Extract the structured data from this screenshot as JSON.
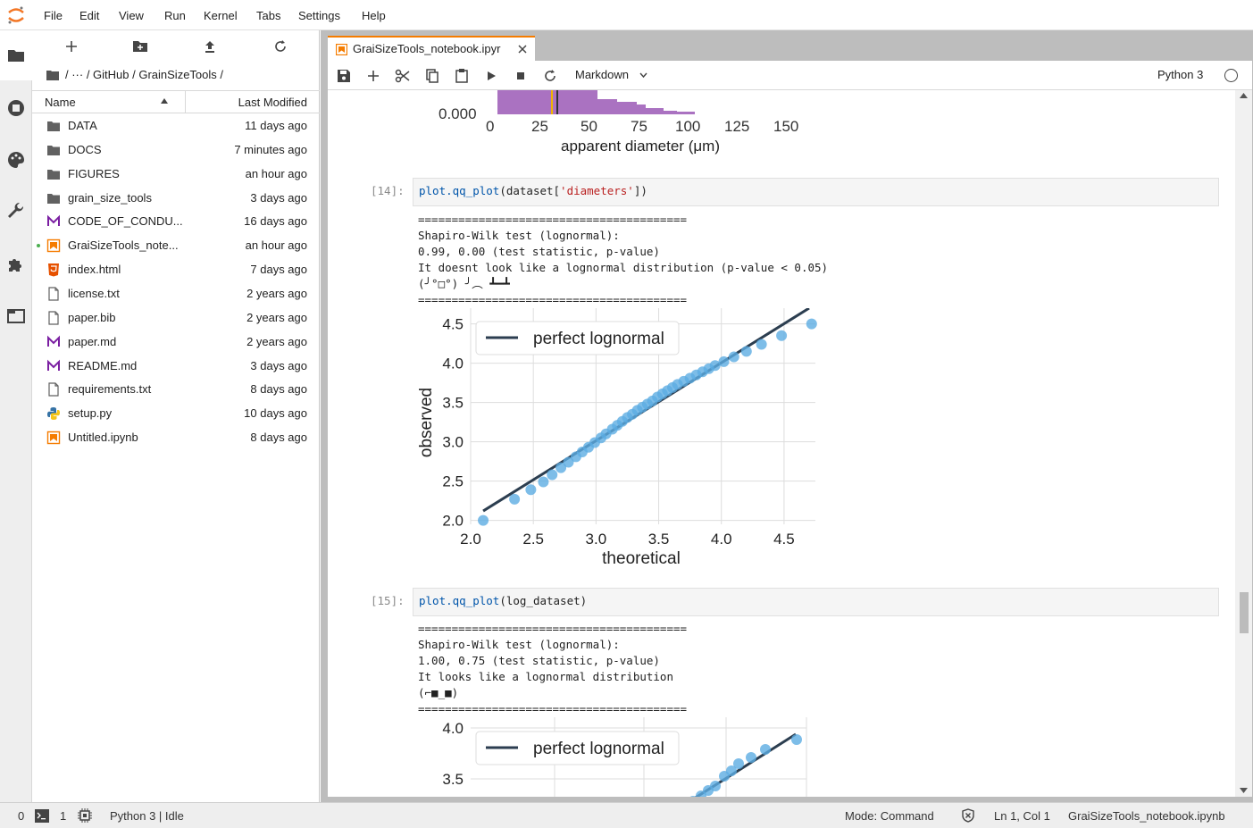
{
  "menu": [
    "File",
    "Edit",
    "View",
    "Run",
    "Kernel",
    "Tabs",
    "Settings",
    "Help"
  ],
  "breadcrumb": "/ ··· / GitHub / GrainSizeTools /",
  "filebrowser": {
    "col_name": "Name",
    "col_modified": "Last Modified",
    "files": [
      {
        "name": "DATA",
        "modified": "11 days ago",
        "icon": "folder-icon"
      },
      {
        "name": "DOCS",
        "modified": "7 minutes ago",
        "icon": "folder-icon"
      },
      {
        "name": "FIGURES",
        "modified": "an hour ago",
        "icon": "folder-icon"
      },
      {
        "name": "grain_size_tools",
        "modified": "3 days ago",
        "icon": "folder-icon"
      },
      {
        "name": "CODE_OF_CONDU...",
        "modified": "16 days ago",
        "icon": "markdown-icon"
      },
      {
        "name": "GraiSizeTools_note...",
        "modified": "an hour ago",
        "icon": "notebook-icon"
      },
      {
        "name": "index.html",
        "modified": "7 days ago",
        "icon": "html-icon"
      },
      {
        "name": "license.txt",
        "modified": "2 years ago",
        "icon": "file-icon"
      },
      {
        "name": "paper.bib",
        "modified": "2 years ago",
        "icon": "file-icon"
      },
      {
        "name": "paper.md",
        "modified": "2 years ago",
        "icon": "markdown-icon"
      },
      {
        "name": "README.md",
        "modified": "3 days ago",
        "icon": "markdown-icon"
      },
      {
        "name": "requirements.txt",
        "modified": "8 days ago",
        "icon": "file-icon"
      },
      {
        "name": "setup.py",
        "modified": "10 days ago",
        "icon": "python-icon"
      },
      {
        "name": "Untitled.ipynb",
        "modified": "8 days ago",
        "icon": "notebook-icon"
      }
    ]
  },
  "tab": {
    "label": "GraiSizeTools_notebook.ipyr"
  },
  "toolbar": {
    "cell_type": "Markdown",
    "kernel": "Python 3"
  },
  "histogram": {
    "ytick": "0.000",
    "xticks": [
      "0",
      "25",
      "50",
      "75",
      "100",
      "125",
      "150"
    ],
    "xlabel": "apparent diameter (μm)"
  },
  "cells": [
    {
      "prompt": "[14]:",
      "code_fn": "plot.qq_plot",
      "code_pre": "(dataset[",
      "code_str": "'diameters'",
      "code_post": "])",
      "output": "========================================\nShapiro-Wilk test (lognormal):\n0.99, 0.00 (test statistic, p-value)\nIt doesnt look like a lognormal distribution (p-value < 0.05)\n(╯°□°) ╯︵ ┻━┻\n========================================"
    },
    {
      "prompt": "[15]:",
      "code_fn": "plot.qq_plot",
      "code_pre": "(log_dataset)",
      "code_str": "",
      "code_post": "",
      "output": "========================================\nShapiro-Wilk test (lognormal):\n1.00, 0.75 (test statistic, p-value)\nIt looks like a lognormal distribution\n(⌐■_■)\n========================================"
    }
  ],
  "chart_data": [
    {
      "type": "scatter",
      "xlabel": "theoretical",
      "ylabel": "observed",
      "legend": "perfect lognormal",
      "legend_position": "top-left",
      "xlim": [
        2.0,
        4.75
      ],
      "ylim": [
        1.95,
        4.7
      ],
      "xticks": [
        "2.0",
        "2.5",
        "3.0",
        "3.5",
        "4.0",
        "4.5"
      ],
      "yticks": [
        "2.0",
        "2.5",
        "3.0",
        "3.5",
        "4.0",
        "4.5"
      ],
      "line": {
        "x": [
          2.1,
          4.7
        ],
        "y": [
          2.12,
          4.7
        ]
      },
      "points": {
        "x": [
          2.1,
          2.35,
          2.48,
          2.58,
          2.65,
          2.72,
          2.78,
          2.84,
          2.89,
          2.94,
          2.99,
          3.04,
          3.08,
          3.13,
          3.17,
          3.21,
          3.25,
          3.29,
          3.33,
          3.37,
          3.41,
          3.45,
          3.49,
          3.53,
          3.57,
          3.61,
          3.65,
          3.7,
          3.75,
          3.8,
          3.85,
          3.9,
          3.95,
          4.02,
          4.1,
          4.2,
          4.32,
          4.48,
          4.72
        ],
        "y": [
          2.0,
          2.27,
          2.39,
          2.49,
          2.58,
          2.67,
          2.74,
          2.81,
          2.87,
          2.93,
          2.99,
          3.05,
          3.1,
          3.16,
          3.21,
          3.26,
          3.31,
          3.35,
          3.4,
          3.44,
          3.48,
          3.52,
          3.57,
          3.61,
          3.65,
          3.69,
          3.73,
          3.77,
          3.81,
          3.85,
          3.89,
          3.93,
          3.97,
          4.02,
          4.08,
          4.15,
          4.24,
          4.35,
          4.5
        ]
      }
    },
    {
      "type": "scatter",
      "legend": "perfect lognormal",
      "legend_position": "top-left",
      "yticks": [
        "4.0",
        "3.5"
      ],
      "partial": true
    }
  ],
  "statusbar": {
    "terminals": "0",
    "kernels": "1",
    "kernel_status": "Python 3 | Idle",
    "mode": "Mode: Command",
    "position": "Ln 1, Col 1",
    "filename": "GraiSizeTools_notebook.ipynb"
  },
  "colors": {
    "accent": "#f57c00",
    "points": "#5dade2",
    "line": "#2c3e50",
    "histogram": "#9b59b6"
  }
}
